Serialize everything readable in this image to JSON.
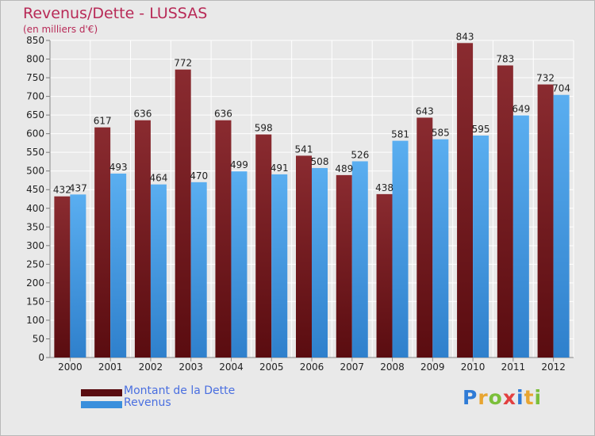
{
  "title": "Revenus/Dette - LUSSAS",
  "subtitle": "(en milliers d'€)",
  "logo": {
    "letters": [
      {
        "ch": "P",
        "color": "#2f7bd6"
      },
      {
        "ch": "r",
        "color": "#e8a531"
      },
      {
        "ch": "o",
        "color": "#7bbf3a"
      },
      {
        "ch": "x",
        "color": "#e24040"
      },
      {
        "ch": "i",
        "color": "#2f7bd6"
      },
      {
        "ch": "t",
        "color": "#e8a531"
      },
      {
        "ch": "i",
        "color": "#7bbf3a"
      }
    ]
  },
  "legend": {
    "debt_label": "Montant de la Dette",
    "revenue_label": "Revenus"
  },
  "chart_data": {
    "type": "bar",
    "categories": [
      "2000",
      "2001",
      "2002",
      "2003",
      "2004",
      "2005",
      "2006",
      "2007",
      "2008",
      "2009",
      "2010",
      "2011",
      "2012"
    ],
    "series": [
      {
        "name": "Montant de la Dette",
        "color": "#7a1f24",
        "values": [
          432,
          617,
          636,
          772,
          636,
          598,
          541,
          489,
          438,
          643,
          843,
          783,
          732
        ]
      },
      {
        "name": "Revenus",
        "color": "#4a9fe6",
        "values": [
          437,
          493,
          464,
          470,
          499,
          491,
          508,
          526,
          581,
          585,
          595,
          649,
          704
        ]
      }
    ],
    "ylim": [
      0,
      850
    ],
    "ytick_step": 50,
    "grid": true,
    "xlabel": "",
    "ylabel": ""
  }
}
